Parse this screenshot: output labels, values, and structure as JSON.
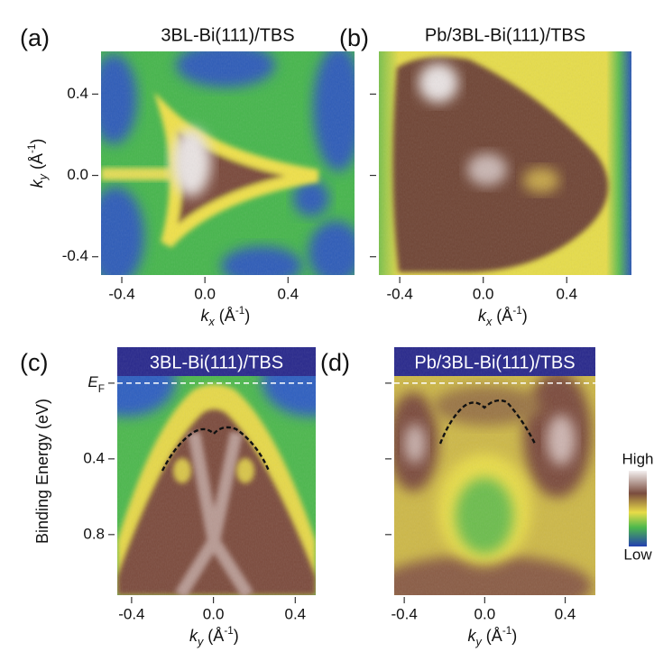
{
  "chart_data": [
    {
      "type": "heatmap",
      "panel_label": "(a)",
      "title": "3BL-Bi(111)/TBS",
      "xlabel": [
        "k",
        "x",
        " (Å",
        "-1",
        ")"
      ],
      "ylabel": [
        "k",
        "y",
        " (Å",
        "-1",
        ")"
      ],
      "xlim": [
        -0.5,
        0.72
      ],
      "ylim": [
        -0.49,
        0.61
      ],
      "xticks": [
        -0.4,
        {
          "value": 0,
          "label": "0.0"
        },
        0.4
      ],
      "yticks": [
        0.4,
        {
          "value": 0,
          "label": "0.0"
        },
        -0.4
      ]
    },
    {
      "type": "heatmap",
      "panel_label": "(b)",
      "title": "Pb/3BL-Bi(111)/TBS",
      "xlabel": [
        "k",
        "x",
        " (Å",
        "-1",
        ")"
      ],
      "xlim": [
        -0.5,
        0.71
      ],
      "ylim": [
        -0.49,
        0.61
      ],
      "xticks": [
        -0.4,
        {
          "value": 0,
          "label": "0.0"
        },
        0.4
      ],
      "yticks": [
        {
          "value": 0.4,
          "label": null
        },
        {
          "value": 0,
          "label": null
        },
        {
          "value": -0.4,
          "label": null
        }
      ]
    },
    {
      "type": "heatmap",
      "panel_label": "(c)",
      "title": "3BL-Bi(111)/TBS",
      "xlabel": [
        "k",
        "y",
        " (Å",
        "-1",
        ")"
      ],
      "ylabel": "Binding Energy (eV)",
      "xlim": [
        -0.47,
        0.5
      ],
      "ylim": [
        1.12,
        -0.19
      ],
      "xticks": [
        -0.4,
        {
          "value": 0,
          "label": "0.0"
        },
        0.4
      ],
      "yticks": [
        {
          "value": 0,
          "label": [
            "E",
            "F"
          ]
        },
        0.4,
        0.8
      ]
    },
    {
      "type": "heatmap",
      "panel_label": "(d)",
      "title": "Pb/3BL-Bi(111)/TBS",
      "xlabel": [
        "k",
        "y",
        " (Å",
        "-1",
        ")"
      ],
      "xlim": [
        -0.45,
        0.55
      ],
      "ylim": [
        1.12,
        -0.19
      ],
      "xticks": [
        -0.4,
        {
          "value": 0,
          "label": "0.0"
        },
        0.4
      ],
      "yticks": [
        {
          "value": 0,
          "label": null
        },
        {
          "value": 0.4,
          "label": null
        },
        {
          "value": 0.8,
          "label": null
        }
      ],
      "colorbar_labels": [
        "High",
        "Low"
      ]
    }
  ]
}
